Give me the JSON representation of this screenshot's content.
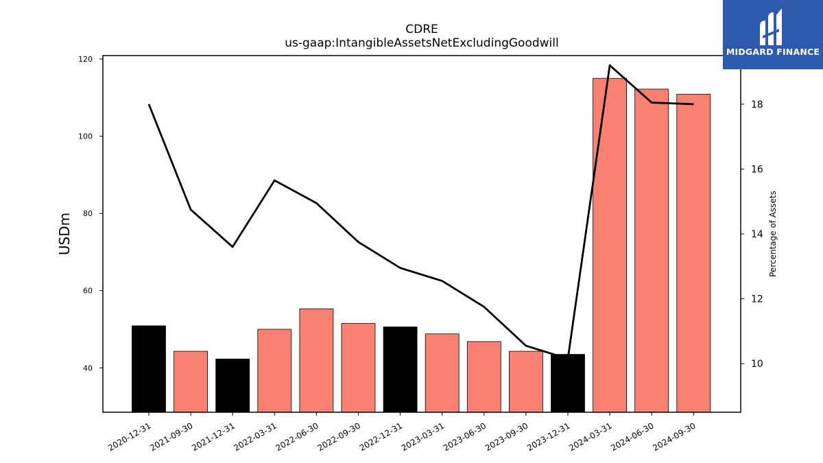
{
  "logo": {
    "text": "MIDGARD FINANCE",
    "background_color": "#2d5aac",
    "icon": "midgard-logo-mark"
  },
  "chart_data": {
    "type": "bar",
    "title": "CDRE",
    "subtitle": "us-gaap:IntangibleAssetsNetExcludingGoodwill",
    "ylabel": "USDm",
    "y2label": "Percentage of Assets",
    "categories": [
      "2020-12-31",
      "2021-09-30",
      "2021-12-31",
      "2022-03-31",
      "2022-06-30",
      "2022-09-30",
      "2022-12-31",
      "2023-03-31",
      "2023-06-30",
      "2023-09-30",
      "2023-12-31",
      "2024-03-31",
      "2024-06-30",
      "2024-09-30"
    ],
    "bar_values": [
      50.9,
      44.3,
      42.3,
      50.0,
      55.3,
      51.5,
      50.6,
      48.8,
      46.8,
      44.3,
      43.5,
      115.0,
      112.2,
      110.9
    ],
    "bar_colors": [
      "#000000",
      "#fa8072",
      "#000000",
      "#fa8072",
      "#fa8072",
      "#fa8072",
      "#000000",
      "#fa8072",
      "#fa8072",
      "#fa8072",
      "#000000",
      "#fa8072",
      "#fa8072",
      "#fa8072"
    ],
    "line_values": [
      18.0,
      14.75,
      13.6,
      15.65,
      14.95,
      13.75,
      12.95,
      12.55,
      11.75,
      10.55,
      10.15,
      19.2,
      18.05,
      18.0
    ],
    "line_color": "#000000",
    "ylim": [
      28.5,
      120.9
    ],
    "y_ticks": [
      40,
      60,
      80,
      100,
      120
    ],
    "y2lim": [
      8.5,
      19.5
    ],
    "y2_ticks": [
      10,
      12,
      14,
      16,
      18
    ],
    "grid": false
  }
}
